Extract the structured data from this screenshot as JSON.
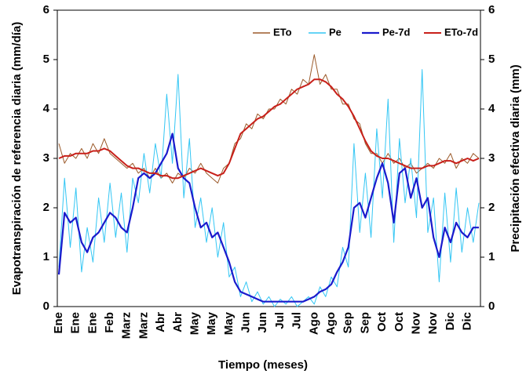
{
  "chart_data": {
    "type": "line",
    "xlabel": "Tiempo (meses)",
    "ylabel": "Evapotranspiración de referencia diaria (mm/día)",
    "y2label": "Precipitación efectiva diaria (mm)",
    "categories": [
      "Ene",
      null,
      null,
      "Ene",
      null,
      null,
      "Ene",
      null,
      null,
      "Feb",
      null,
      null,
      "Marz",
      null,
      null,
      "Marz",
      null,
      null,
      "Abr",
      null,
      null,
      "Abr",
      null,
      null,
      "May",
      null,
      null,
      "May",
      null,
      null,
      "May",
      null,
      null,
      "Jun",
      null,
      null,
      "Jun",
      null,
      null,
      "Jul",
      null,
      null,
      "Jul",
      null,
      null,
      "Ago",
      null,
      null,
      "Ago",
      null,
      null,
      "Sep",
      null,
      null,
      "Sep",
      null,
      null,
      "Oct",
      null,
      null,
      "Oct",
      null,
      null,
      "Nov",
      null,
      null,
      "Nov",
      null,
      null,
      "Dic",
      null,
      null,
      "Dic",
      null,
      null
    ],
    "ylim": [
      0,
      6
    ],
    "yticks": [
      0,
      1,
      2,
      3,
      4,
      5,
      6
    ],
    "y2lim": [
      0,
      6
    ],
    "y2ticks": [
      0,
      1,
      2,
      3,
      4,
      5,
      6
    ],
    "grid": false,
    "legend": "upper right",
    "series": [
      {
        "name": "ETo",
        "color": "#9b5a2a",
        "width": 1,
        "values": [
          3.3,
          2.9,
          3.1,
          3.0,
          3.2,
          3.0,
          3.3,
          3.1,
          3.4,
          3.1,
          3.0,
          2.9,
          2.8,
          2.9,
          2.7,
          2.8,
          2.6,
          2.8,
          2.6,
          2.7,
          2.5,
          2.7,
          2.6,
          2.8,
          2.7,
          2.9,
          2.7,
          2.6,
          2.5,
          2.8,
          2.9,
          3.3,
          3.4,
          3.7,
          3.6,
          3.9,
          3.8,
          4.0,
          4.0,
          4.2,
          4.1,
          4.4,
          4.3,
          4.6,
          4.5,
          5.1,
          4.5,
          4.7,
          4.4,
          4.4,
          4.1,
          4.1,
          3.8,
          3.7,
          3.3,
          3.1,
          3.1,
          2.9,
          3.1,
          2.9,
          3.0,
          2.8,
          2.9,
          2.7,
          2.8,
          2.9,
          2.8,
          3.0,
          2.9,
          3.1,
          2.8,
          3.0,
          2.9,
          3.1,
          3.0
        ]
      },
      {
        "name": "Pe",
        "color": "#33c6f4",
        "width": 1,
        "axis": "y2",
        "values": [
          0.8,
          2.6,
          1.2,
          2.4,
          0.7,
          1.6,
          0.9,
          2.2,
          1.3,
          2.5,
          1.4,
          2.3,
          1.1,
          2.6,
          2.1,
          3.1,
          2.3,
          3.3,
          2.6,
          4.3,
          2.9,
          4.7,
          2.2,
          3.4,
          1.6,
          2.2,
          1.3,
          2.0,
          1.0,
          1.7,
          0.6,
          0.8,
          0.2,
          0.5,
          0.1,
          0.3,
          0.05,
          0.2,
          0.0,
          0.15,
          0.05,
          0.2,
          0.0,
          0.1,
          0.2,
          0.05,
          0.4,
          0.2,
          0.6,
          0.4,
          1.2,
          0.8,
          3.3,
          1.5,
          2.7,
          1.4,
          3.6,
          2.2,
          4.2,
          1.3,
          3.4,
          2.1,
          3.0,
          1.8,
          4.8,
          1.5,
          2.2,
          0.5,
          2.3,
          0.9,
          2.4,
          1.1,
          2.0,
          1.3,
          2.1
        ]
      },
      {
        "name": "Pe-7d",
        "color": "#1a1acc",
        "width": 2.2,
        "axis": "y2",
        "values": [
          0.65,
          1.9,
          1.7,
          1.8,
          1.3,
          1.1,
          1.4,
          1.5,
          1.7,
          1.9,
          1.8,
          1.6,
          1.5,
          2.0,
          2.6,
          2.7,
          2.6,
          2.7,
          2.9,
          3.1,
          3.5,
          2.8,
          2.6,
          2.5,
          2.0,
          1.6,
          1.7,
          1.4,
          1.5,
          1.2,
          0.9,
          0.5,
          0.3,
          0.25,
          0.2,
          0.15,
          0.1,
          0.1,
          0.1,
          0.1,
          0.1,
          0.1,
          0.1,
          0.1,
          0.15,
          0.2,
          0.3,
          0.35,
          0.45,
          0.7,
          0.9,
          1.2,
          2.0,
          2.1,
          1.8,
          2.2,
          2.6,
          2.9,
          2.5,
          1.7,
          2.7,
          2.8,
          2.2,
          2.6,
          2.0,
          2.2,
          1.4,
          1.0,
          1.6,
          1.3,
          1.7,
          1.5,
          1.4,
          1.6,
          1.6
        ]
      },
      {
        "name": "ETo-7d",
        "color": "#c8201a",
        "width": 2,
        "values": [
          3.0,
          3.05,
          3.05,
          3.1,
          3.1,
          3.1,
          3.15,
          3.15,
          3.2,
          3.15,
          3.05,
          2.95,
          2.85,
          2.8,
          2.8,
          2.75,
          2.7,
          2.7,
          2.65,
          2.65,
          2.6,
          2.6,
          2.65,
          2.7,
          2.75,
          2.8,
          2.75,
          2.7,
          2.65,
          2.7,
          2.9,
          3.2,
          3.5,
          3.6,
          3.7,
          3.8,
          3.85,
          3.95,
          4.05,
          4.1,
          4.2,
          4.3,
          4.4,
          4.45,
          4.5,
          4.6,
          4.6,
          4.55,
          4.45,
          4.3,
          4.2,
          4.05,
          3.85,
          3.6,
          3.35,
          3.15,
          3.05,
          3.0,
          3.0,
          2.95,
          2.9,
          2.85,
          2.8,
          2.8,
          2.8,
          2.85,
          2.85,
          2.9,
          2.95,
          2.95,
          2.9,
          2.95,
          3.0,
          2.95,
          3.0
        ]
      }
    ]
  }
}
